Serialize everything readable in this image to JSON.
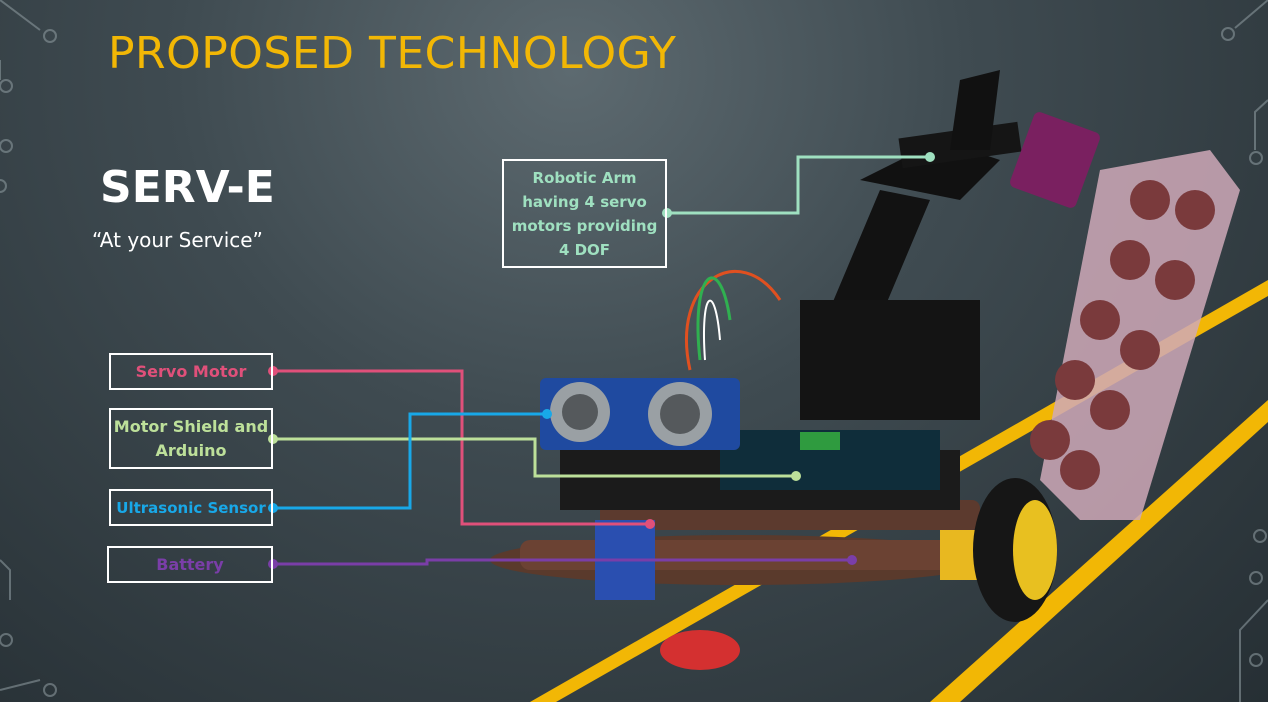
{
  "slide": {
    "title": "PROPOSED TECHNOLOGY",
    "product_name": "SERV-E",
    "tagline": "“At your Service”"
  },
  "callouts": {
    "robotic_arm": "Robotic Arm having 4 servo motors providing 4 DOF",
    "servo_motor": "Servo Motor",
    "motor_shield": "Motor Shield and Arduino",
    "ultrasonic_sensor": "Ultrasonic Sensor",
    "battery": "Battery"
  },
  "colors": {
    "title": "#f2b705",
    "accent_stripe": "#f2b705",
    "robotic_arm": "#9fe0c0",
    "servo_motor": "#e0507a",
    "motor_shield": "#bde09a",
    "ultrasonic_sensor": "#18a8e8",
    "battery": "#7a3ea8"
  }
}
